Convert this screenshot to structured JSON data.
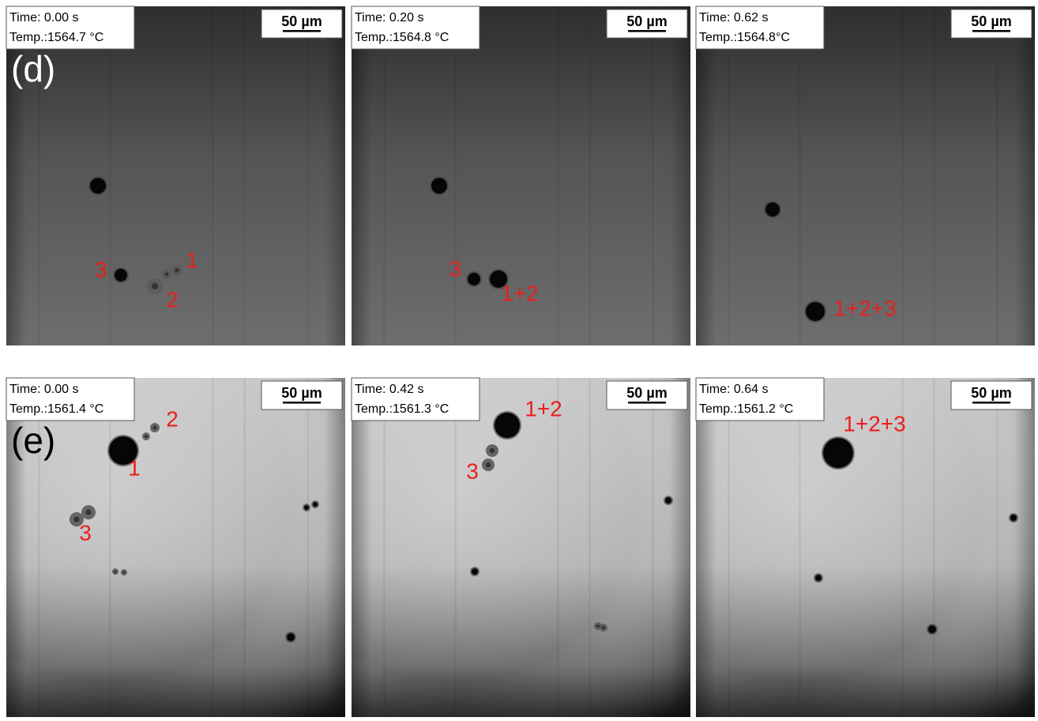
{
  "rows": [
    {
      "label": "(d)",
      "panels": [
        {
          "time": "Time: 0.00 s",
          "temp": "Temp.:1564.7 °C",
          "scale": "50 µm",
          "labels": [
            "3",
            "1",
            "2"
          ]
        },
        {
          "time": "Time: 0.20 s",
          "temp": "Temp.:1564.8 °C",
          "scale": "50 µm",
          "labels": [
            "3",
            "1+2"
          ]
        },
        {
          "time": "Time: 0.62 s",
          "temp": "Temp.:1564.8°C",
          "scale": "50 µm",
          "labels": [
            "1+2+3"
          ]
        }
      ]
    },
    {
      "label": "(e)",
      "panels": [
        {
          "time": "Time: 0.00 s",
          "temp": "Temp.:1561.4 °C",
          "scale": "50 µm",
          "labels": [
            "2",
            "1",
            "3"
          ]
        },
        {
          "time": "Time: 0.42 s",
          "temp": "Temp.:1561.3 °C",
          "scale": "50 µm",
          "labels": [
            "1+2",
            "3"
          ]
        },
        {
          "time": "Time: 0.64 s",
          "temp": "Temp.:1561.2 °C",
          "scale": "50 µm",
          "labels": [
            "1+2+3"
          ]
        }
      ]
    }
  ]
}
